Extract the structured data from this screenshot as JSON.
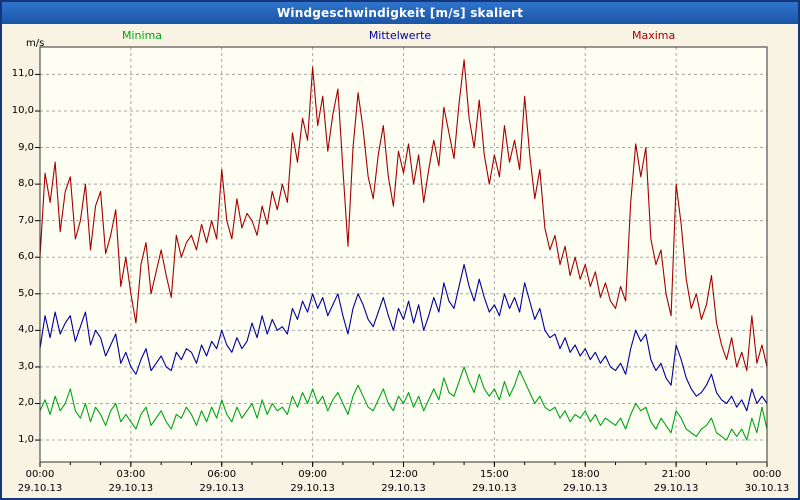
{
  "window": {
    "title": "Windgeschwindigkeit [m/s] skaliert"
  },
  "legend": {
    "minima": "Minima",
    "mittelwerte": "Mittelwerte",
    "maxima": "Maxima"
  },
  "axes": {
    "y_unit": "m/s"
  },
  "colors": {
    "minima": "#00a416",
    "mittelwerte": "#00009b",
    "maxima": "#a50000",
    "titlebar": "#1b55a6",
    "grid": "#a8a8a8",
    "frame": "#303030",
    "background": "#f8f3e2",
    "plot_background": "#fffef2"
  },
  "chart_data": {
    "type": "line",
    "title": "Windgeschwindigkeit [m/s] skaliert",
    "ylabel": "m/s",
    "xlabel": "",
    "x_start_hour": 0,
    "x_end_hour": 24,
    "interval_minutes": 10,
    "ylim": [
      0.4,
      11.75
    ],
    "grid": true,
    "legend_position": "top",
    "y_ticks": [
      {
        "value": 1,
        "label": "1,0"
      },
      {
        "value": 2,
        "label": "2,0"
      },
      {
        "value": 3,
        "label": "3,0"
      },
      {
        "value": 4,
        "label": "4,0"
      },
      {
        "value": 5,
        "label": "5,0"
      },
      {
        "value": 6,
        "label": "6,0"
      },
      {
        "value": 7,
        "label": "7,0"
      },
      {
        "value": 8,
        "label": "8,0"
      },
      {
        "value": 9,
        "label": "9,0"
      },
      {
        "value": 10,
        "label": "10,0"
      },
      {
        "value": 11,
        "label": "11,0"
      }
    ],
    "x_ticks": [
      {
        "hour": 0,
        "time": "00:00",
        "date": "29.10.13"
      },
      {
        "hour": 3,
        "time": "03:00",
        "date": "29.10.13"
      },
      {
        "hour": 6,
        "time": "06:00",
        "date": "29.10.13"
      },
      {
        "hour": 9,
        "time": "09:00",
        "date": "29.10.13"
      },
      {
        "hour": 12,
        "time": "12:00",
        "date": "29.10.13"
      },
      {
        "hour": 15,
        "time": "15:00",
        "date": "29.10.13"
      },
      {
        "hour": 18,
        "time": "18:00",
        "date": "29.10.13"
      },
      {
        "hour": 21,
        "time": "21:00",
        "date": "29.10.13"
      },
      {
        "hour": 24,
        "time": "00:00",
        "date": "30.10.13"
      }
    ],
    "series": [
      {
        "name": "Minima",
        "color": "#00a416",
        "values": [
          1.8,
          2.1,
          1.7,
          2.2,
          1.8,
          2.0,
          2.4,
          1.8,
          1.6,
          2.0,
          1.5,
          1.9,
          1.7,
          1.4,
          1.8,
          2.0,
          1.5,
          1.7,
          1.5,
          1.3,
          1.7,
          1.9,
          1.4,
          1.6,
          1.8,
          1.5,
          1.3,
          1.7,
          1.6,
          1.9,
          1.7,
          1.4,
          1.8,
          1.5,
          1.9,
          1.6,
          2.1,
          1.7,
          1.5,
          1.9,
          1.6,
          1.8,
          2.0,
          1.6,
          2.1,
          1.7,
          2.0,
          1.8,
          1.9,
          1.7,
          2.2,
          1.9,
          2.3,
          2.0,
          2.4,
          2.0,
          2.2,
          1.8,
          2.1,
          2.3,
          2.0,
          1.7,
          2.2,
          2.5,
          2.2,
          1.9,
          1.8,
          2.1,
          2.4,
          2.0,
          1.8,
          2.2,
          2.0,
          2.3,
          1.9,
          2.2,
          1.8,
          2.1,
          2.4,
          2.1,
          2.7,
          2.3,
          2.2,
          2.6,
          3.0,
          2.6,
          2.3,
          2.8,
          2.4,
          2.2,
          2.4,
          2.1,
          2.6,
          2.2,
          2.5,
          2.9,
          2.6,
          2.3,
          2.0,
          2.2,
          1.9,
          1.8,
          1.9,
          1.6,
          1.8,
          1.5,
          1.7,
          1.6,
          1.8,
          1.5,
          1.7,
          1.4,
          1.6,
          1.5,
          1.4,
          1.6,
          1.3,
          1.7,
          2.0,
          1.8,
          1.9,
          1.5,
          1.3,
          1.6,
          1.4,
          1.2,
          1.8,
          1.6,
          1.3,
          1.2,
          1.1,
          1.3,
          1.4,
          1.6,
          1.2,
          1.1,
          1.0,
          1.3,
          1.1,
          1.3,
          1.0,
          1.6,
          1.2,
          1.9,
          1.3
        ]
      },
      {
        "name": "Mittelwerte",
        "color": "#00009b",
        "values": [
          3.5,
          4.4,
          3.8,
          4.5,
          3.9,
          4.2,
          4.4,
          3.7,
          4.1,
          4.5,
          3.6,
          4.0,
          3.8,
          3.3,
          3.6,
          3.9,
          3.1,
          3.4,
          3.0,
          2.8,
          3.2,
          3.5,
          2.9,
          3.1,
          3.3,
          3.0,
          2.9,
          3.4,
          3.2,
          3.5,
          3.4,
          3.1,
          3.6,
          3.3,
          3.7,
          3.5,
          4.0,
          3.6,
          3.4,
          3.8,
          3.5,
          3.7,
          4.2,
          3.8,
          4.4,
          3.9,
          4.3,
          4.0,
          4.1,
          3.9,
          4.6,
          4.3,
          4.8,
          4.5,
          5.0,
          4.6,
          4.9,
          4.4,
          4.7,
          5.0,
          4.4,
          3.9,
          4.6,
          5.0,
          4.7,
          4.3,
          4.1,
          4.5,
          4.9,
          4.4,
          4.0,
          4.6,
          4.3,
          4.8,
          4.2,
          4.7,
          4.0,
          4.4,
          4.9,
          4.5,
          5.3,
          4.8,
          4.6,
          5.2,
          5.8,
          5.2,
          4.8,
          5.4,
          4.9,
          4.5,
          4.7,
          4.4,
          5.0,
          4.6,
          4.9,
          4.5,
          5.3,
          4.8,
          4.3,
          4.6,
          4.0,
          3.8,
          3.9,
          3.5,
          3.8,
          3.4,
          3.6,
          3.3,
          3.5,
          3.2,
          3.4,
          3.1,
          3.3,
          3.0,
          2.9,
          3.1,
          2.8,
          3.5,
          4.0,
          3.7,
          3.9,
          3.2,
          2.9,
          3.1,
          2.7,
          2.5,
          3.6,
          3.2,
          2.7,
          2.4,
          2.2,
          2.3,
          2.5,
          2.8,
          2.3,
          2.1,
          2.0,
          2.2,
          1.9,
          2.1,
          1.8,
          2.4,
          2.0,
          2.2,
          2.0
        ]
      },
      {
        "name": "Maxima",
        "color": "#a50000",
        "values": [
          6.0,
          8.3,
          7.5,
          8.6,
          6.7,
          7.8,
          8.2,
          6.5,
          7.0,
          8.0,
          6.2,
          7.4,
          7.8,
          6.1,
          6.6,
          7.3,
          5.2,
          6.0,
          5.0,
          4.2,
          5.8,
          6.4,
          5.0,
          5.6,
          6.2,
          5.5,
          4.9,
          6.6,
          6.0,
          6.4,
          6.6,
          6.2,
          6.9,
          6.4,
          7.0,
          6.5,
          8.4,
          7.0,
          6.5,
          7.6,
          6.8,
          7.2,
          7.0,
          6.6,
          7.4,
          6.9,
          7.8,
          7.3,
          8.0,
          7.5,
          9.4,
          8.6,
          9.8,
          9.2,
          11.2,
          9.6,
          10.4,
          8.9,
          9.9,
          10.6,
          8.4,
          6.3,
          9.0,
          10.5,
          9.5,
          8.2,
          7.6,
          8.8,
          9.6,
          8.2,
          7.4,
          8.9,
          8.3,
          9.1,
          8.0,
          8.8,
          7.5,
          8.4,
          9.2,
          8.5,
          10.1,
          9.4,
          8.7,
          10.2,
          11.4,
          9.8,
          9.0,
          10.3,
          8.8,
          8.0,
          8.8,
          8.2,
          9.6,
          8.6,
          9.2,
          8.4,
          10.4,
          8.8,
          7.6,
          8.4,
          6.8,
          6.2,
          6.6,
          5.8,
          6.3,
          5.5,
          6.0,
          5.4,
          5.8,
          5.2,
          5.6,
          4.9,
          5.3,
          4.8,
          4.6,
          5.2,
          4.8,
          7.5,
          9.1,
          8.2,
          9.0,
          6.5,
          5.8,
          6.2,
          5.0,
          4.4,
          8.0,
          6.9,
          5.4,
          4.6,
          5.0,
          4.3,
          4.7,
          5.5,
          4.2,
          3.6,
          3.2,
          3.8,
          3.0,
          3.4,
          2.9,
          4.4,
          3.1,
          3.6,
          3.0
        ]
      }
    ]
  }
}
